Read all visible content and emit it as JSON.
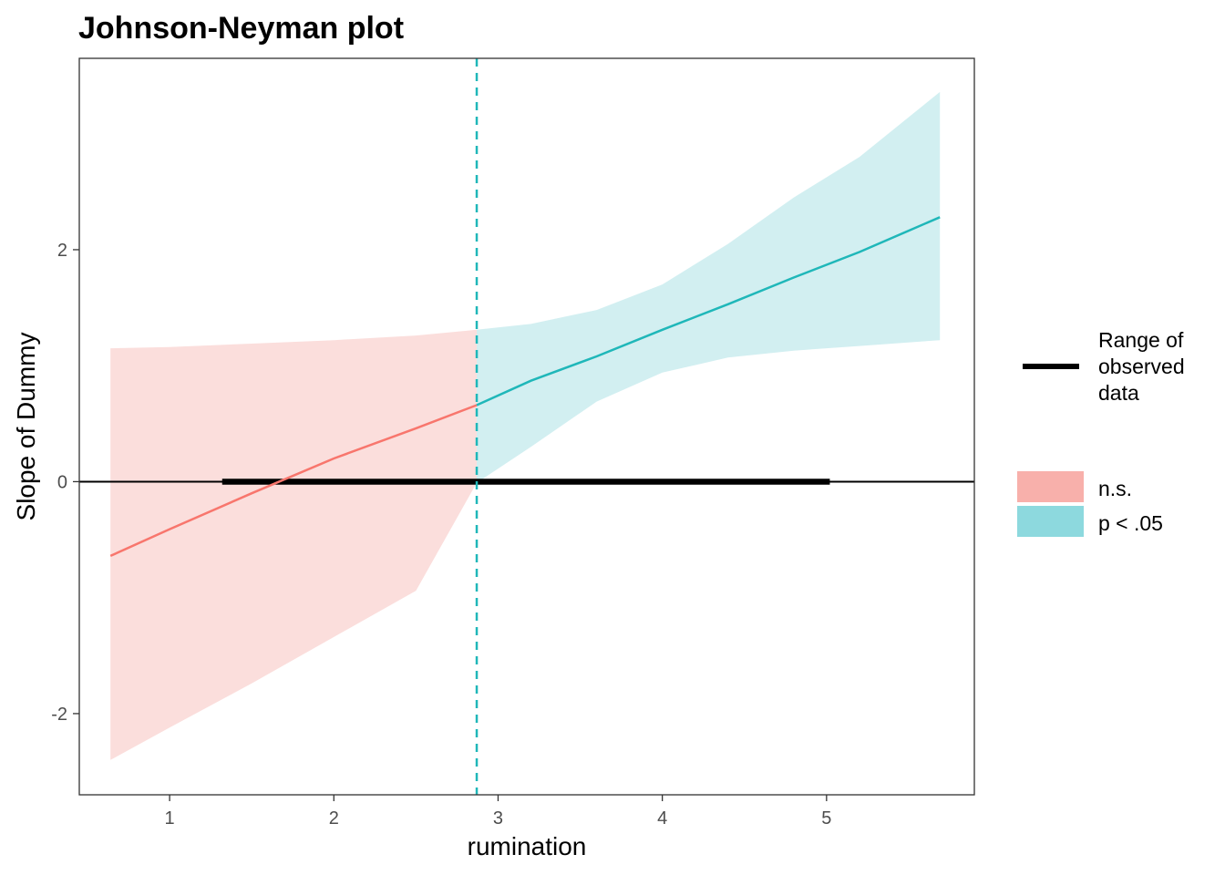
{
  "chart_data": {
    "type": "line",
    "title": "Johnson-Neyman plot",
    "xlabel": "rumination",
    "ylabel": "Slope of Dummy",
    "xlim": [
      0.45,
      5.9
    ],
    "ylim": [
      -2.7,
      3.65
    ],
    "x_ticks": [
      1,
      2,
      3,
      4,
      5
    ],
    "y_ticks": [
      -2,
      0,
      2
    ],
    "y_tick_labels": [
      "-2",
      "0",
      "2"
    ],
    "jn_point": 2.87,
    "zero_line": 0,
    "observed_range": [
      1.32,
      5.02
    ],
    "colors": {
      "ns_line": "#F8766D",
      "ns_band": "#FBDEDC",
      "sig_line": "#1FB7B9",
      "sig_band": "#D2EFF1",
      "ns_legend": "#F8B0AB",
      "sig_legend": "#8DD9DE",
      "vline": "#1FB7B9"
    },
    "series": [
      {
        "name": "n.s.",
        "x": [
          0.64,
          1.0,
          1.5,
          2.0,
          2.5,
          2.87
        ],
        "y": [
          -0.64,
          -0.41,
          -0.1,
          0.2,
          0.46,
          0.66
        ],
        "lower": [
          -2.4,
          -2.12,
          -1.74,
          -1.34,
          -0.94,
          -0.01
        ],
        "upper": [
          1.15,
          1.16,
          1.19,
          1.22,
          1.26,
          1.31
        ]
      },
      {
        "name": "p < .05",
        "x": [
          2.87,
          3.2,
          3.6,
          4.0,
          4.4,
          4.8,
          5.2,
          5.69
        ],
        "y": [
          0.66,
          0.87,
          1.08,
          1.31,
          1.53,
          1.76,
          1.98,
          2.28
        ],
        "lower": [
          -0.01,
          0.3,
          0.69,
          0.94,
          1.07,
          1.13,
          1.17,
          1.22
        ],
        "upper": [
          1.31,
          1.36,
          1.48,
          1.7,
          2.05,
          2.45,
          2.8,
          3.36
        ]
      }
    ],
    "legend": {
      "range_label_lines": [
        "Range of",
        "observed",
        "data"
      ],
      "fill_entries": [
        "n.s.",
        "p < .05"
      ]
    }
  }
}
